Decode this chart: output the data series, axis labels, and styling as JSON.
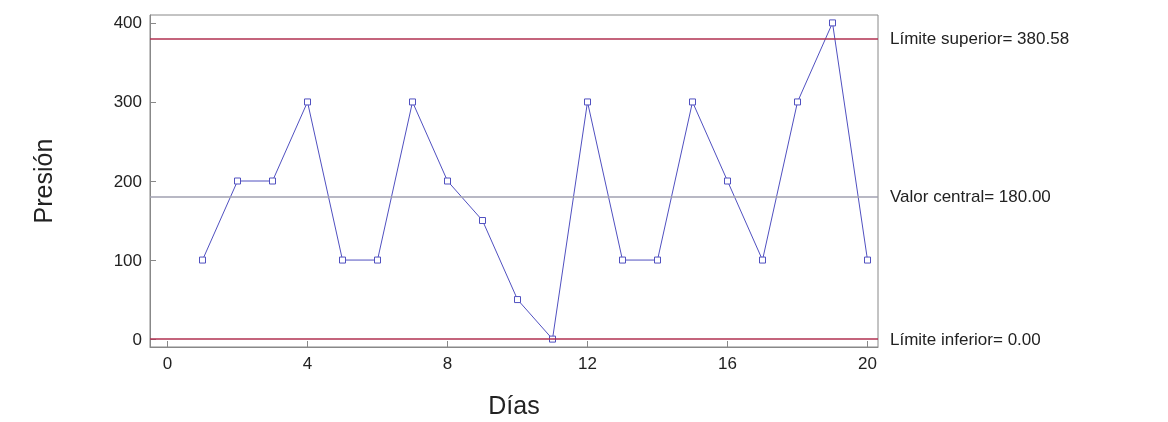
{
  "chart_data": {
    "type": "line",
    "xlabel": "Días",
    "ylabel": "Presión",
    "x": [
      1,
      2,
      3,
      4,
      5,
      6,
      7,
      8,
      9,
      10,
      11,
      12,
      13,
      14,
      15,
      16,
      17,
      18,
      19,
      20
    ],
    "series": [
      {
        "color": "#5050c0",
        "values": [
          100,
          200,
          200,
          300,
          100,
          100,
          300,
          200,
          150,
          50,
          0,
          300,
          100,
          100,
          300,
          200,
          100,
          300,
          400,
          100
        ]
      }
    ],
    "xlim": [
      -0.5,
      20.3
    ],
    "xticks": [
      0,
      4,
      8,
      12,
      16,
      20
    ],
    "ylim": [
      -10,
      410
    ],
    "yticks": [
      0,
      100,
      200,
      300,
      400
    ],
    "marker": "square",
    "grid": false,
    "ref_lines": [
      {
        "axis": "y",
        "value": 380.58,
        "label": "Límite superior= 380.58",
        "color": "#b03050"
      },
      {
        "axis": "y",
        "value": 180,
        "label": "Valor central= 180.00",
        "color": "#a0a0b0"
      },
      {
        "axis": "y",
        "value": 0,
        "label": "Límite inferior= 0.00",
        "color": "#b03050"
      }
    ]
  }
}
